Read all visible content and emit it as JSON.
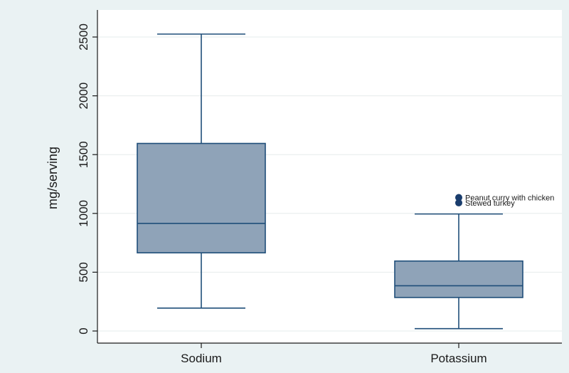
{
  "chart_data": {
    "type": "box",
    "title": "",
    "xlabel": "",
    "ylabel": "mg/serving",
    "ylim": [
      0,
      2600
    ],
    "yticks": [
      0,
      500,
      1000,
      1500,
      2000,
      2500
    ],
    "ytick_labels": [
      "0",
      "500",
      "1000",
      "1500",
      "2000",
      "2500"
    ],
    "grid": true,
    "categories": [
      "Sodium",
      "Potassium"
    ],
    "boxes": [
      {
        "category": "Sodium",
        "whisker_low": 195,
        "q1": 665,
        "median": 915,
        "q3": 1595,
        "whisker_high": 2525,
        "outliers": []
      },
      {
        "category": "Potassium",
        "whisker_low": 20,
        "q1": 285,
        "median": 385,
        "q3": 595,
        "whisker_high": 995,
        "outliers": [
          {
            "value": 1135,
            "label": "Peanut curry with chicken"
          },
          {
            "value": 1090,
            "label": "Stewed turkey"
          }
        ]
      }
    ],
    "colors": {
      "outer_background": "#eaf2f3",
      "plot_background": "#ffffff",
      "box_fill": "#8fa3b8",
      "box_stroke": "#1f4e79",
      "outlier": "#1a3d6d",
      "grid": "#e6ecec",
      "axis": "#1a1a1a"
    }
  }
}
